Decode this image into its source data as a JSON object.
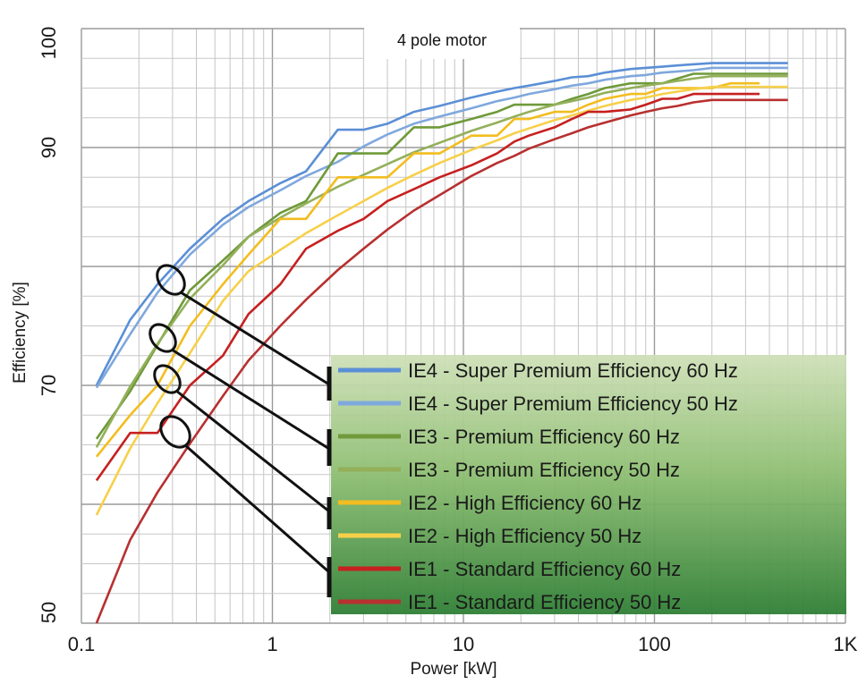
{
  "chart_data": {
    "type": "line",
    "title": "4 pole motor",
    "xlabel": "Power [kW]",
    "ylabel": "Efficiency [%]",
    "x_scale": "log",
    "xlim": [
      0.1,
      1000
    ],
    "ylim": [
      50,
      100
    ],
    "x_ticks": [
      {
        "value": 0.1,
        "label": "0.1"
      },
      {
        "value": 1,
        "label": "1"
      },
      {
        "value": 10,
        "label": "10"
      },
      {
        "value": 100,
        "label": "100"
      },
      {
        "value": 1000,
        "label": "1K"
      }
    ],
    "y_ticks": [
      {
        "value": 50,
        "label": "50"
      },
      {
        "value": 70,
        "label": "70"
      },
      {
        "value": 90,
        "label": "90"
      },
      {
        "value": 100,
        "label": "100"
      }
    ],
    "grid": true,
    "legend_position": "bottom-right",
    "series": [
      {
        "name": "IE4 - Super Premium Efficiency 60 Hz",
        "color": "#5b8fd6",
        "x": [
          0.12,
          0.18,
          0.25,
          0.37,
          0.55,
          0.75,
          1.1,
          1.5,
          2.2,
          3,
          4,
          5.5,
          7.5,
          11,
          15,
          18.5,
          22,
          30,
          37,
          45,
          55,
          75,
          90,
          110,
          132,
          160,
          200,
          250,
          315,
          355,
          500
        ],
        "y": [
          70,
          75.5,
          78.5,
          81.5,
          84,
          85.5,
          87,
          88,
          91.5,
          91.5,
          92,
          93,
          93.5,
          94.2,
          94.7,
          95,
          95.2,
          95.6,
          95.9,
          96,
          96.3,
          96.6,
          96.7,
          96.8,
          96.9,
          97,
          97.1,
          97.1,
          97.1,
          97.1,
          97.1
        ]
      },
      {
        "name": "IE4 - Super Premium Efficiency 50 Hz",
        "color": "#7fa8dd",
        "x": [
          0.12,
          0.18,
          0.25,
          0.37,
          0.55,
          0.75,
          1.1,
          1.5,
          2.2,
          3,
          4,
          5.5,
          7.5,
          11,
          15,
          18.5,
          22,
          30,
          37,
          45,
          55,
          75,
          90,
          110,
          132,
          160,
          200,
          250,
          315,
          355,
          500
        ],
        "y": [
          69.8,
          74.3,
          77.8,
          81,
          83.5,
          85,
          86.4,
          87.6,
          88.8,
          90.1,
          91.1,
          92,
          92.6,
          93.3,
          93.9,
          94.2,
          94.5,
          94.9,
          95.2,
          95.4,
          95.7,
          96,
          96.1,
          96.3,
          96.4,
          96.5,
          96.7,
          96.7,
          96.7,
          96.7,
          96.7
        ]
      },
      {
        "name": "IE3 - Premium Efficiency 60 Hz",
        "color": "#6f9a3a",
        "x": [
          0.12,
          0.18,
          0.25,
          0.37,
          0.55,
          0.75,
          1.1,
          1.5,
          2.2,
          3,
          4,
          5.5,
          7.5,
          11,
          15,
          18.5,
          22,
          30,
          37,
          45,
          55,
          75,
          90,
          110,
          132,
          160,
          200,
          250,
          315,
          355,
          500
        ],
        "y": [
          65.5,
          69.5,
          73.4,
          78,
          80.5,
          82.5,
          84.5,
          85.5,
          89.5,
          89.5,
          89.5,
          91.7,
          91.7,
          92.4,
          93,
          93.6,
          93.6,
          93.6,
          94.1,
          94.5,
          95,
          95.4,
          95.4,
          95.4,
          95.8,
          96.2,
          96.2,
          96.2,
          96.2,
          96.2,
          96.2
        ]
      },
      {
        "name": "IE3 - Premium Efficiency 50 Hz",
        "color": "#93b05a",
        "x": [
          0.12,
          0.18,
          0.25,
          0.37,
          0.55,
          0.75,
          1.1,
          1.5,
          2.2,
          3,
          4,
          5.5,
          7.5,
          11,
          15,
          18.5,
          22,
          30,
          37,
          45,
          55,
          75,
          90,
          110,
          132,
          160,
          200,
          250,
          315,
          355,
          500
        ],
        "y": [
          64.8,
          69.9,
          73.5,
          77.3,
          80.1,
          82.5,
          84.1,
          85.3,
          86.7,
          87.7,
          88.6,
          89.6,
          90.4,
          91.4,
          92.1,
          92.6,
          93,
          93.6,
          93.9,
          94.2,
          94.6,
          95,
          95.2,
          95.4,
          95.6,
          95.8,
          96,
          96,
          96,
          96,
          96
        ]
      },
      {
        "name": "IE2 - High Efficiency 60 Hz",
        "color": "#f2bd1f",
        "x": [
          0.12,
          0.18,
          0.25,
          0.37,
          0.55,
          0.75,
          1.1,
          1.5,
          2.2,
          3,
          4,
          5.5,
          7.5,
          11,
          15,
          18.5,
          22,
          30,
          37,
          45,
          55,
          75,
          90,
          110,
          132,
          160,
          200,
          250,
          315,
          355
        ],
        "y": [
          64,
          67.5,
          70,
          75,
          78.5,
          81,
          84,
          84,
          87.5,
          87.5,
          87.5,
          89.5,
          89.5,
          91,
          91,
          92.4,
          92.4,
          93,
          93,
          93.6,
          94.1,
          94.5,
          94.5,
          95,
          95,
          95,
          95,
          95.4,
          95.4,
          95.4
        ]
      },
      {
        "name": "IE2 - High Efficiency 50 Hz",
        "color": "#f7d04a",
        "x": [
          0.12,
          0.18,
          0.25,
          0.37,
          0.55,
          0.75,
          1.1,
          1.5,
          2.2,
          3,
          4,
          5.5,
          7.5,
          11,
          15,
          18.5,
          22,
          30,
          37,
          45,
          55,
          75,
          90,
          110,
          132,
          160,
          200,
          250,
          315,
          355,
          500
        ],
        "y": [
          59.1,
          64.7,
          68.5,
          72.7,
          77.1,
          79.6,
          81.4,
          82.8,
          84.3,
          85.5,
          86.6,
          87.7,
          88.7,
          89.8,
          90.6,
          91.2,
          91.6,
          92.3,
          92.7,
          93.1,
          93.5,
          94,
          94.2,
          94.5,
          94.7,
          94.9,
          95.1,
          95.1,
          95.1,
          95.1,
          95.1
        ]
      },
      {
        "name": "IE1 - Standard Efficiency 60 Hz",
        "color": "#c62020",
        "x": [
          0.12,
          0.18,
          0.25,
          0.37,
          0.55,
          0.75,
          1.1,
          1.5,
          2.2,
          3,
          4,
          5.5,
          7.5,
          11,
          15,
          18.5,
          22,
          30,
          37,
          45,
          55,
          75,
          90,
          110,
          132,
          160,
          200,
          250,
          315,
          355
        ],
        "y": [
          62,
          66,
          66,
          70,
          72.5,
          76,
          78.5,
          81.5,
          83,
          84,
          85.5,
          86.5,
          87.5,
          88.5,
          89.5,
          90.5,
          91,
          91.7,
          92.4,
          93,
          93,
          93.2,
          93.6,
          94.1,
          94.1,
          94.5,
          94.5,
          94.5,
          94.5,
          94.5
        ]
      },
      {
        "name": "IE1 - Standard Efficiency 50 Hz",
        "color": "#b83030",
        "x": [
          0.12,
          0.18,
          0.25,
          0.37,
          0.55,
          0.75,
          1.1,
          1.5,
          2.2,
          3,
          4,
          5.5,
          7.5,
          11,
          15,
          18.5,
          22,
          30,
          37,
          45,
          55,
          75,
          90,
          110,
          132,
          160,
          200,
          250,
          315,
          355,
          500
        ],
        "y": [
          50,
          57,
          61,
          65.1,
          69.1,
          72.1,
          75,
          77.2,
          79.7,
          81.5,
          83.1,
          84.7,
          86,
          87.6,
          88.7,
          89.3,
          89.9,
          90.7,
          91.2,
          91.7,
          92.1,
          92.7,
          93,
          93.3,
          93.5,
          93.8,
          94,
          94,
          94,
          94,
          94
        ]
      }
    ]
  }
}
